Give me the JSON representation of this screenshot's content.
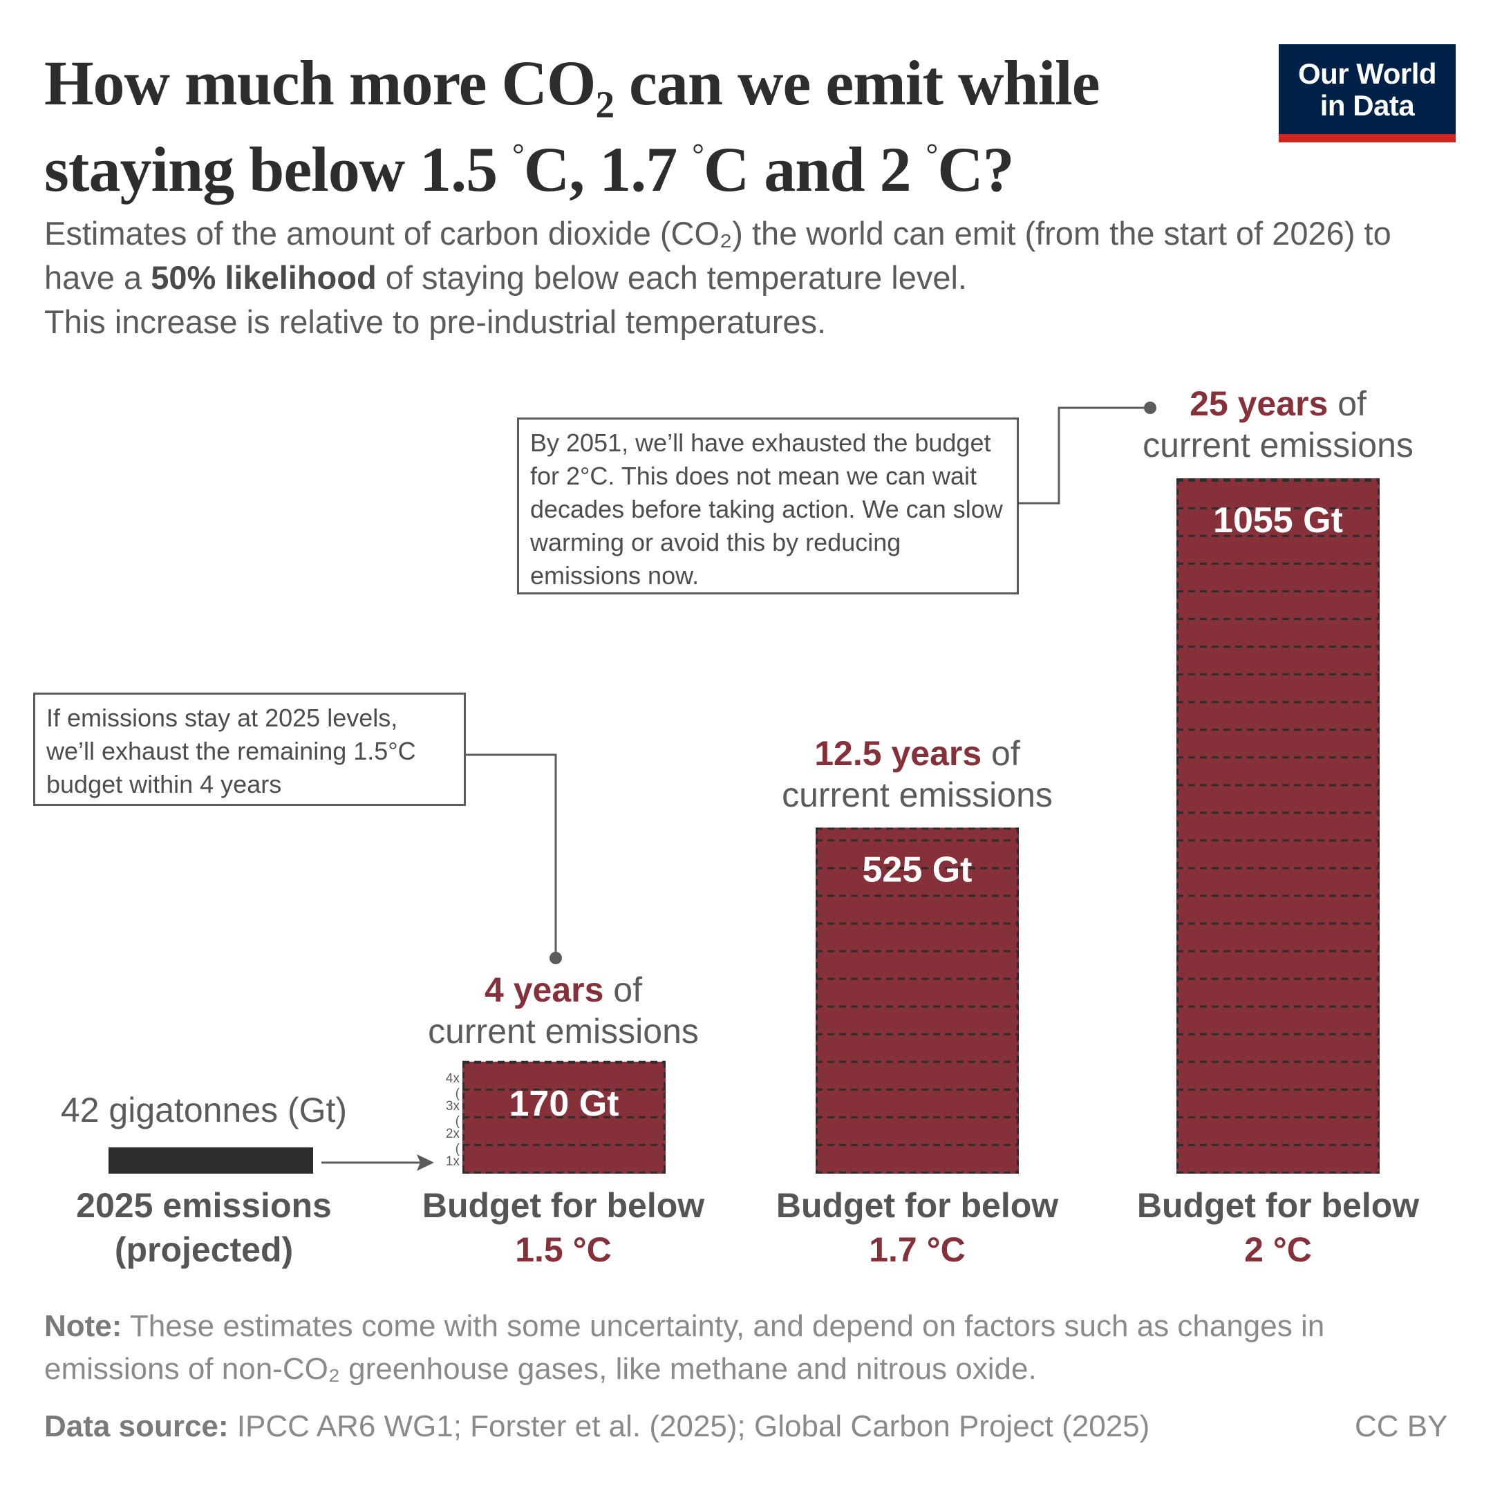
{
  "header": {
    "title_line1_a": "How much more CO",
    "title_line1_sub": "₂",
    "title_line1_b": " can we emit while",
    "title_line2_a": "staying below 1.5 ",
    "title_line2_deg1": "°",
    "title_line2_b": "C, 1.7 ",
    "title_line2_deg2": "°",
    "title_line2_c": "C and 2 ",
    "title_line2_deg3": "°",
    "title_line2_d": "C?",
    "logo_line1": "Our World",
    "logo_line2": "in Data",
    "subtitle_a": "Estimates of the amount of carbon dioxide (CO₂) the world can emit (from the start of 2026) to have a ",
    "subtitle_bold": "50% likelihood",
    "subtitle_b": " of staying below each temperature level.",
    "subtitle_line3": "This increase is relative to pre-industrial temperatures."
  },
  "colors": {
    "bar": "#86303a",
    "emissions_bar": "#2e2c2d",
    "dash": "#2e2c2d",
    "logo_bg": "#002147",
    "logo_accent": "#ce261e"
  },
  "chart_data": {
    "type": "bar",
    "title": "How much more CO₂ can we emit while staying below 1.5 °C, 1.7 °C and 2 °C?",
    "unit": "Gt",
    "emissions_2025": {
      "value": 42,
      "value_label": "42 gigatonnes (Gt)",
      "label_line1": "2025 emissions",
      "label_line2": "(projected)"
    },
    "categories": [
      "1.5 °C",
      "1.7 °C",
      "2 °C"
    ],
    "values": [
      170,
      525,
      1055
    ],
    "value_labels": [
      "170 Gt",
      "525 Gt",
      "1055 Gt"
    ],
    "years": [
      4,
      12.5,
      25
    ],
    "years_labels": [
      "4 years",
      "12.5 years",
      "25 years"
    ],
    "years_suffix": " of",
    "years_line2": "current emissions",
    "category_prefix": "Budget for below",
    "multiplier_ticks": [
      "1x",
      "(",
      "2x",
      "(",
      "3x",
      "(",
      "4x"
    ],
    "dash_interval_gt": 42
  },
  "annotations": {
    "a15": "If emissions stay at 2025 levels, we’ll exhaust the remaining 1.5°C budget within 4 years",
    "a2": "By 2051, we’ll have exhausted the budget for 2°C. This does not mean we can wait decades before taking action. We can slow warming or avoid this by reducing emissions now."
  },
  "footer": {
    "note_label": "Note:",
    "note_text": " These estimates come with some uncertainty, and depend on factors such as changes in emissions of non-CO₂ greenhouse gases, like methane and nitrous oxide.",
    "source_label": "Data source:",
    "source_text": " IPCC AR6 WG1; Forster et al. (2025); Global Carbon Project (2025)",
    "license": "CC BY"
  }
}
